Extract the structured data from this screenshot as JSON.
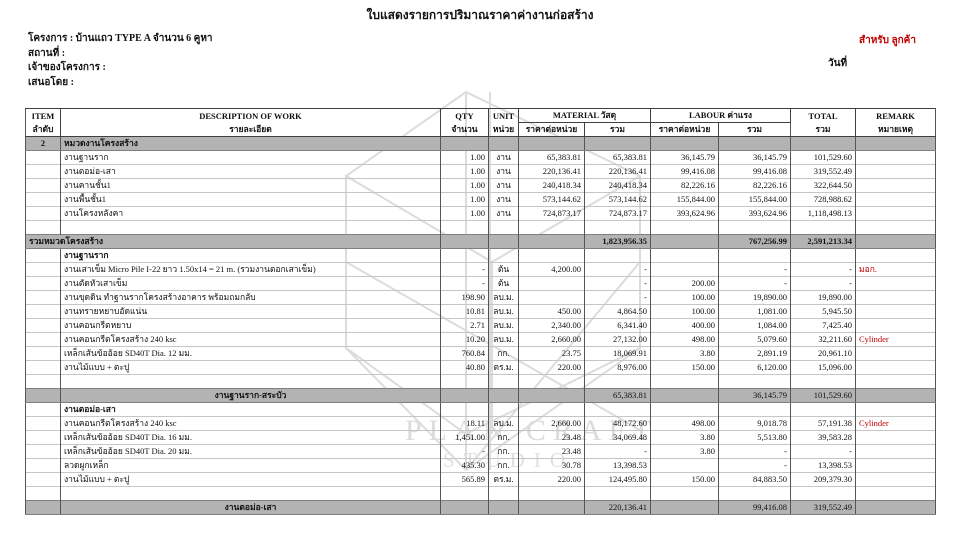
{
  "title": "ใบแสดงรายการปริมาณราคาค่างานก่อสร้าง",
  "meta": {
    "project": "โครงการ :  บ้านแถว TYPE A จำนวน 6 คูหา",
    "location": "สถานที่ :",
    "owner": "เจ้าของโครงการ :",
    "proposed_by": "เสนอโดย :",
    "for_label": "สำหรับ ลูกค้า",
    "date_label": "วันที่"
  },
  "watermark": {
    "line1": "PLAN CRAFT",
    "line2": "STUDIO"
  },
  "colors": {
    "accent_red": "#c00000",
    "row_gray": "#b3b3b3",
    "watermark_gray": "#dcdcdc"
  },
  "table": {
    "headers": {
      "item_en": "ITEM",
      "item_th": "ลำดับ",
      "desc_en": "DESCRIPTION OF WORK",
      "desc_th": "รายละเอียด",
      "qty_en": "QTY",
      "qty_th": "จำนวน",
      "unit_en": "UNIT",
      "unit_th": "หน่วย",
      "material": "MATERIAL วัสดุ",
      "labour": "LABOUR ค่าแรง",
      "total_en": "TOTAL",
      "total_th": "รวม",
      "remark_en": "REMARK",
      "remark_th": "หมายเหตุ",
      "unit_price": "ราคาต่อหน่วย",
      "sum": "รวม"
    },
    "rows": [
      {
        "type": "section",
        "item": "2",
        "desc": "หมวดงานโครงสร้าง"
      },
      {
        "type": "data",
        "ind": 1,
        "desc": "งานฐานราก",
        "qty": "1.00",
        "unit": "งาน",
        "mat_unit": "65,383.81",
        "mat_total": "65,383.81",
        "lab_unit": "36,145.79",
        "lab_total": "36,145.79",
        "total": "101,529.60",
        "remark": ""
      },
      {
        "type": "data",
        "ind": 1,
        "desc": "งานตอม่อ-เสา",
        "qty": "1.00",
        "unit": "งาน",
        "mat_unit": "220,136.41",
        "mat_total": "220,136.41",
        "lab_unit": "99,416.08",
        "lab_total": "99,416.08",
        "total": "319,552.49",
        "remark": ""
      },
      {
        "type": "data",
        "ind": 1,
        "desc": "งานคานชั้น1",
        "qty": "1.00",
        "unit": "งาน",
        "mat_unit": "240,418.34",
        "mat_total": "240,418.34",
        "lab_unit": "82,226.16",
        "lab_total": "82,226.16",
        "total": "322,644.50",
        "remark": ""
      },
      {
        "type": "data",
        "ind": 1,
        "desc": "งานพื้นชั้น1",
        "qty": "1.00",
        "unit": "งาน",
        "mat_unit": "573,144.62",
        "mat_total": "573,144.62",
        "lab_unit": "155,844.00",
        "lab_total": "155,844.00",
        "total": "728,988.62",
        "remark": ""
      },
      {
        "type": "data",
        "ind": 1,
        "desc": "งานโครงหลังคา",
        "qty": "1.00",
        "unit": "งาน",
        "mat_unit": "724,873.17",
        "mat_total": "724,873.17",
        "lab_unit": "393,624.96",
        "lab_total": "393,624.96",
        "total": "1,118,498.13",
        "remark": ""
      },
      {
        "type": "empty"
      },
      {
        "type": "grand",
        "desc": "รวมหมวดโครงสร้าง",
        "qty": "",
        "unit": "",
        "mat_unit": "",
        "mat_total": "1,823,956.35",
        "lab_unit": "",
        "lab_total": "767,256.99",
        "total": "2,591,213.34",
        "remark": ""
      },
      {
        "type": "subsection",
        "desc": "งานฐานราก"
      },
      {
        "type": "data",
        "ind": 2,
        "desc": "งานเสาเข็ม Micro Pile I-22 ยาว 1.50x14 = 21 m. (รวมงานตอกเสาเข็ม)",
        "qty": "-",
        "unit": "ต้น",
        "mat_unit": "4,200.00",
        "mat_total": "-",
        "lab_unit": "",
        "lab_total": "-",
        "total": "-",
        "remark": "มอก."
      },
      {
        "type": "data",
        "ind": 2,
        "desc": "งานตัดหัวเสาเข็ม",
        "qty": "-",
        "unit": "ต้น",
        "mat_unit": "",
        "mat_total": "-",
        "lab_unit": "200.00",
        "lab_total": "-",
        "total": "-",
        "remark": ""
      },
      {
        "type": "data",
        "ind": 2,
        "desc": "งานขุดดิน ทำฐานรากโครงสร้างอาคาร พร้อมถมกลับ",
        "qty": "198.90",
        "unit": "ลบ.ม.",
        "mat_unit": "",
        "mat_total": "-",
        "lab_unit": "100.00",
        "lab_total": "19,890.00",
        "total": "19,890.00",
        "remark": ""
      },
      {
        "type": "data",
        "ind": 2,
        "desc": "งานทรายหยาบอัดแน่น",
        "qty": "10.81",
        "unit": "ลบ.ม.",
        "mat_unit": "450.00",
        "mat_total": "4,864.50",
        "lab_unit": "100.00",
        "lab_total": "1,081.00",
        "total": "5,945.50",
        "remark": ""
      },
      {
        "type": "data",
        "ind": 2,
        "desc": "งานคอนกรีตหยาบ",
        "qty": "2.71",
        "unit": "ลบ.ม.",
        "mat_unit": "2,340.00",
        "mat_total": "6,341.40",
        "lab_unit": "400.00",
        "lab_total": "1,084.00",
        "total": "7,425.40",
        "remark": ""
      },
      {
        "type": "data",
        "ind": 2,
        "desc": "งานคอนกรีตโครงสร้าง 240 ksc",
        "qty": "10.20",
        "unit": "ลบ.ม.",
        "mat_unit": "2,660.00",
        "mat_total": "27,132.00",
        "lab_unit": "498.00",
        "lab_total": "5,079.60",
        "total": "32,211.60",
        "remark": "Cylinder"
      },
      {
        "type": "data",
        "ind": 2,
        "desc": "เหล็กเส้นข้ออ้อย SD40T Dia. 12 มม.",
        "qty": "760.84",
        "unit": "กก.",
        "mat_unit": "23.75",
        "mat_total": "18,069.91",
        "lab_unit": "3.80",
        "lab_total": "2,891.19",
        "total": "20,961.10",
        "remark": ""
      },
      {
        "type": "data",
        "ind": 2,
        "desc": "งานไม้แบบ + ตะปู",
        "qty": "40.80",
        "unit": "ตร.ม.",
        "mat_unit": "220.00",
        "mat_total": "8,976.00",
        "lab_unit": "150.00",
        "lab_total": "6,120.00",
        "total": "15,096.00",
        "remark": ""
      },
      {
        "type": "empty"
      },
      {
        "type": "subtotal",
        "desc": "งานฐานราก-สระบัว",
        "qty": "",
        "unit": "",
        "mat_unit": "",
        "mat_total": "65,383.81",
        "lab_unit": "",
        "lab_total": "36,145.79",
        "total": "101,529.60",
        "remark": ""
      },
      {
        "type": "subsection",
        "desc": "งานตอม่อ-เสา"
      },
      {
        "type": "data",
        "ind": 2,
        "desc": "งานคอนกรีตโครงสร้าง 240 ksc",
        "qty": "18.11",
        "unit": "ลบ.ม.",
        "mat_unit": "2,660.00",
        "mat_total": "48,172.60",
        "lab_unit": "498.00",
        "lab_total": "9,018.78",
        "total": "57,191.38",
        "remark": "Cylinder"
      },
      {
        "type": "data",
        "ind": 2,
        "desc": "เหล็กเส้นข้ออ้อย SD40T Dia. 16 มม.",
        "qty": "1,451.00",
        "unit": "กก.",
        "mat_unit": "23.48",
        "mat_total": "34,069.48",
        "lab_unit": "3.80",
        "lab_total": "5,513.80",
        "total": "39,583.28",
        "remark": ""
      },
      {
        "type": "data",
        "ind": 2,
        "desc": "เหล็กเส้นข้ออ้อย SD40T Dia. 20 มม.",
        "qty": "-",
        "unit": "กก.",
        "mat_unit": "23.48",
        "mat_total": "-",
        "lab_unit": "3.80",
        "lab_total": "-",
        "total": "-",
        "remark": ""
      },
      {
        "type": "data",
        "ind": 2,
        "desc": "ลวดผูกเหล็ก",
        "qty": "435.30",
        "unit": "กก.",
        "mat_unit": "30.78",
        "mat_total": "13,398.53",
        "lab_unit": "",
        "lab_total": "-",
        "total": "13,398.53",
        "remark": ""
      },
      {
        "type": "data",
        "ind": 2,
        "desc": "งานไม้แบบ + ตะปู",
        "qty": "565.89",
        "unit": "ตร.ม.",
        "mat_unit": "220.00",
        "mat_total": "124,495.80",
        "lab_unit": "150.00",
        "lab_total": "84,883.50",
        "total": "209,379.30",
        "remark": ""
      },
      {
        "type": "empty"
      },
      {
        "type": "subtotal",
        "desc": "งานตอม่อ-เสา",
        "qty": "",
        "unit": "",
        "mat_unit": "",
        "mat_total": "220,136.41",
        "lab_unit": "",
        "lab_total": "99,416.08",
        "total": "319,552.49",
        "remark": ""
      }
    ]
  }
}
